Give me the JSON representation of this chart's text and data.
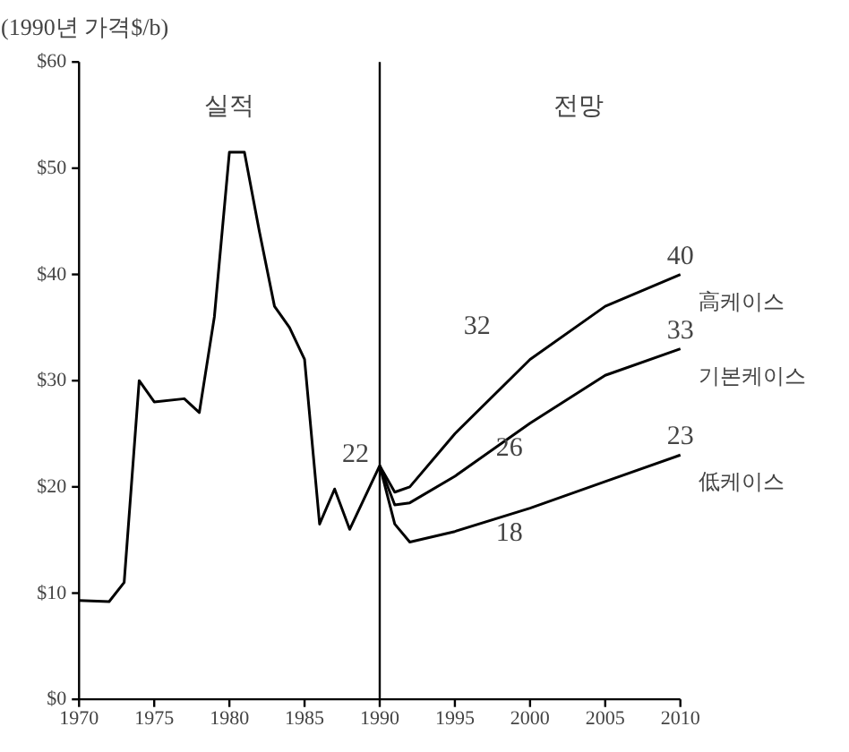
{
  "chart_data": {
    "type": "line",
    "ylabel": "(1990년 가격$/b)",
    "xlim": [
      1970,
      2010
    ],
    "xticks": [
      1970,
      1975,
      1980,
      1985,
      1990,
      1995,
      2000,
      2005,
      2010
    ],
    "ylim": [
      0,
      60
    ],
    "yticks": [
      {
        "value": 0,
        "label": "$0"
      },
      {
        "value": 10,
        "label": "$10"
      },
      {
        "value": 20,
        "label": "$20"
      },
      {
        "value": 30,
        "label": "$30"
      },
      {
        "value": 40,
        "label": "$40"
      },
      {
        "value": 50,
        "label": "$50"
      },
      {
        "value": 60,
        "label": "$60"
      }
    ],
    "grid": false,
    "legend": false,
    "marker": "none",
    "line_style": "solid",
    "annotations": [
      "실적",
      "전망"
    ],
    "ref_lines": [
      {
        "axis": "x",
        "value": 1990,
        "color": "#000000"
      }
    ],
    "series": [
      {
        "color": "#000000",
        "x": [
          1970,
          1972,
          1973,
          1974,
          1975,
          1977,
          1978,
          1979,
          1980,
          1981,
          1982,
          1983,
          1984,
          1985,
          1986,
          1987,
          1988,
          1990
        ],
        "values": [
          9.3,
          9.2,
          11,
          30,
          28,
          28.3,
          27,
          36,
          51.5,
          51.5,
          44,
          37,
          35,
          32,
          16.5,
          19.8,
          16,
          22
        ],
        "value_labels": [
          null,
          null,
          null,
          null,
          null,
          null,
          null,
          null,
          null,
          null,
          null,
          null,
          null,
          null,
          null,
          null,
          null,
          "22"
        ]
      },
      {
        "name": "高케이스",
        "color": "#000000",
        "x": [
          1990,
          1991,
          1992,
          1995,
          2000,
          2005,
          2010
        ],
        "values": [
          22,
          19.5,
          20,
          25,
          32,
          37,
          40
        ],
        "value_labels": [
          null,
          null,
          null,
          null,
          "32",
          null,
          "40"
        ]
      },
      {
        "name": "기본케이스",
        "color": "#000000",
        "x": [
          1990,
          1991,
          1992,
          1995,
          2000,
          2005,
          2010
        ],
        "values": [
          22,
          18.3,
          18.5,
          21,
          26,
          30.5,
          33
        ],
        "value_labels": [
          null,
          null,
          null,
          null,
          "26",
          null,
          "33"
        ]
      },
      {
        "name": "低케이스",
        "color": "#000000",
        "x": [
          1990,
          1991,
          1992,
          1995,
          2000,
          2005,
          2010
        ],
        "values": [
          22,
          16.5,
          14.8,
          15.8,
          18,
          20.5,
          23
        ],
        "value_labels": [
          null,
          null,
          null,
          null,
          "18",
          null,
          "23"
        ]
      }
    ]
  }
}
